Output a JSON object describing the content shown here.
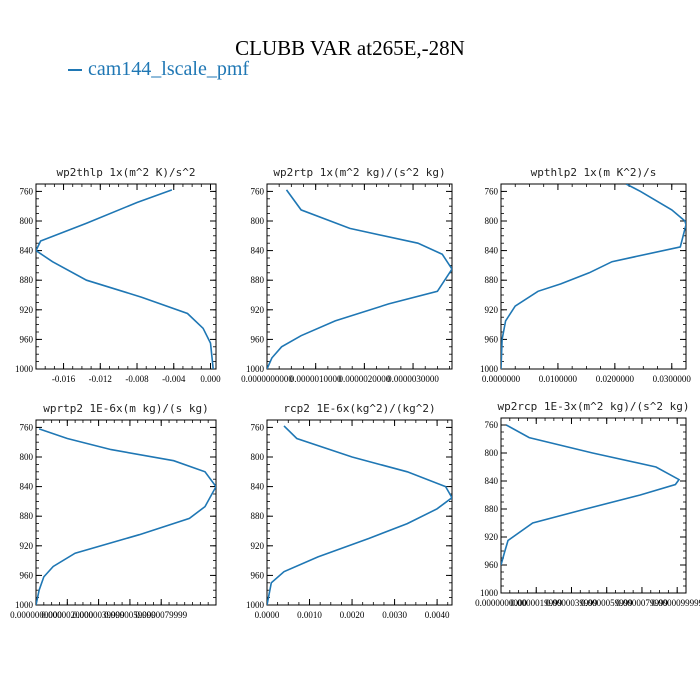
{
  "title": "CLUBB VAR at265E,-28N",
  "legend": {
    "label": "cam144_lscale_pmf",
    "color": "#1f77b4"
  },
  "chart_data": [
    {
      "type": "line",
      "title": "wp2thlp  1x(m^2 K)/s^2",
      "xlim": [
        -0.019,
        0.0006
      ],
      "ylim": [
        1000,
        750
      ],
      "xticks": [
        -0.016,
        -0.012,
        -0.008,
        -0.004,
        0.0
      ],
      "xtick_labels": [
        "-0.016",
        "-0.012",
        "-0.008",
        "-0.004",
        "0.000"
      ],
      "yticks": [
        760,
        800,
        840,
        880,
        920,
        960,
        1000
      ],
      "series": [
        {
          "color": "#1f77b4",
          "x": [
            -0.0042,
            -0.008,
            -0.0135,
            -0.0185,
            -0.019,
            -0.0172,
            -0.0135,
            -0.0075,
            -0.0025,
            -0.0008,
            0.0,
            0.0003
          ],
          "y": [
            758,
            775,
            803,
            827,
            840,
            855,
            880,
            903,
            925,
            945,
            965,
            1000
          ]
        }
      ]
    },
    {
      "type": "line",
      "title": "wp2rtp  1x(m^2 kg)/(s^2 kg)",
      "xlim": [
        0.0,
        3.8e-06
      ],
      "ylim": [
        1000,
        750
      ],
      "xticks": [
        0.0,
        1e-06,
        2e-06,
        3e-06
      ],
      "xtick_labels": [
        "0.0000000000",
        "0.0000010000",
        "0.0000020000",
        "0.0000030000"
      ],
      "yticks": [
        760,
        800,
        840,
        880,
        920,
        960,
        1000
      ],
      "series": [
        {
          "color": "#1f77b4",
          "x": [
            4e-07,
            7e-07,
            1.7e-06,
            3.1e-06,
            3.6e-06,
            3.8e-06,
            3.5e-06,
            2.5e-06,
            1.4e-06,
            7e-07,
            3e-07,
            1e-07,
            0.0
          ],
          "y": [
            758,
            785,
            810,
            830,
            845,
            865,
            895,
            912,
            935,
            955,
            970,
            985,
            1000
          ]
        }
      ]
    },
    {
      "type": "line",
      "title": "wpthlp2  1x(m K^2)/s",
      "xlim": [
        0.0,
        0.0325
      ],
      "ylim": [
        1000,
        750
      ],
      "xticks": [
        0.0,
        0.01,
        0.02,
        0.03
      ],
      "xtick_labels": [
        "0.0000000",
        "0.0100000",
        "0.0200000",
        "0.0300000"
      ],
      "yticks": [
        760,
        800,
        840,
        880,
        920,
        960,
        1000
      ],
      "series": [
        {
          "color": "#1f77b4",
          "x": [
            0.022,
            0.0245,
            0.03,
            0.0323,
            0.0325,
            0.0315,
            0.0195,
            0.0155,
            0.0105,
            0.0065,
            0.0025,
            0.0008,
            0.0002,
            0.0
          ],
          "y": [
            750,
            760,
            785,
            800,
            805,
            835,
            855,
            870,
            885,
            895,
            915,
            935,
            960,
            1000
          ]
        }
      ]
    },
    {
      "type": "line",
      "title": "wprtp2  1E-6x(m kg)/(s kg)",
      "xlim": [
        0.0,
        1.15e-05
      ],
      "ylim": [
        1000,
        750
      ],
      "xticks": [
        0.0,
        2e-06,
        4e-06,
        6e-06,
        8e-06
      ],
      "xtick_labels": [
        "0.0000000000",
        "0.0000020000",
        "0.0000039999",
        "0.0000059999",
        "0.0000079999"
      ],
      "yticks": [
        760,
        800,
        840,
        880,
        920,
        960,
        1000
      ],
      "series": [
        {
          "color": "#1f77b4",
          "x": [
            2e-07,
            2e-06,
            4.8e-06,
            8.8e-06,
            1.08e-05,
            1.15e-05,
            1.08e-05,
            9.8e-06,
            6.6e-06,
            2.5e-06,
            1.1e-06,
            5e-07,
            2e-07,
            0.0
          ],
          "y": [
            762,
            775,
            790,
            805,
            820,
            840,
            867,
            883,
            905,
            930,
            948,
            962,
            980,
            1000
          ]
        }
      ]
    },
    {
      "type": "line",
      "title": "rcp2  1E-6x(kg^2)/(kg^2)",
      "xlim": [
        0.0,
        0.00435
      ],
      "ylim": [
        1000,
        750
      ],
      "xticks": [
        0.0,
        0.001,
        0.002,
        0.003,
        0.004
      ],
      "xtick_labels": [
        "0.0000",
        "0.0010",
        "0.0020",
        "0.0030",
        "0.0040"
      ],
      "yticks": [
        760,
        800,
        840,
        880,
        920,
        960,
        1000
      ],
      "series": [
        {
          "color": "#1f77b4",
          "x": [
            0.0004,
            0.0007,
            0.002,
            0.0033,
            0.0042,
            0.00435,
            0.004,
            0.0033,
            0.0024,
            0.0012,
            0.0004,
            0.0001,
            0.0
          ],
          "y": [
            758,
            775,
            800,
            820,
            840,
            855,
            870,
            890,
            910,
            935,
            955,
            970,
            1000
          ]
        }
      ]
    },
    {
      "type": "line",
      "title": "wp2rcp  1E-3x(m^2 kg)/(s^2 kg)",
      "xlim": [
        0.0,
        1.05e-05
      ],
      "ylim": [
        1000,
        750
      ],
      "xticks": [
        0.0,
        2e-06,
        4e-06,
        6e-06,
        8e-06,
        1e-05
      ],
      "xtick_labels": [
        "0.0000000000",
        "0.0000019999",
        "0.0000039999",
        "0.0000059999",
        "0.0000079999",
        "0.0000099999"
      ],
      "yticks": [
        760,
        800,
        840,
        880,
        920,
        960,
        1000
      ],
      "series": [
        {
          "color": "#1f77b4",
          "x": [
            3e-07,
            1.6e-06,
            5.2e-06,
            8.8e-06,
            1.01e-05,
            9.9e-06,
            7.9e-06,
            4.8e-06,
            1.8e-06,
            4e-07,
            2e-07,
            0.0
          ],
          "y": [
            760,
            778,
            800,
            820,
            838,
            845,
            860,
            880,
            900,
            925,
            942,
            960
          ]
        }
      ]
    }
  ]
}
